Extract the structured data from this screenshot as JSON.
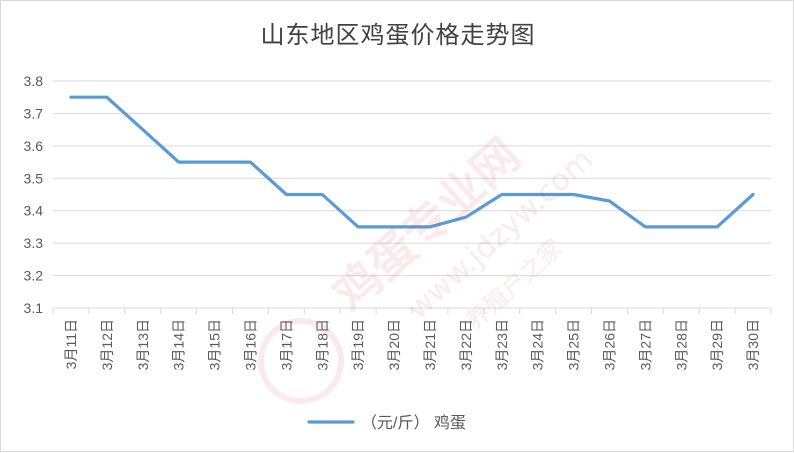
{
  "chart_data": {
    "type": "line",
    "title": "山东地区鸡蛋价格走势图",
    "xlabel": "",
    "ylabel": "",
    "categories": [
      "3月11日",
      "3月12日",
      "3月13日",
      "3月14日",
      "3月15日",
      "3月16日",
      "3月17日",
      "3月18日",
      "3月19日",
      "3月20日",
      "3月21日",
      "3月22日",
      "3月23日",
      "3月24日",
      "3月25日",
      "3月26日",
      "3月27日",
      "3月28日",
      "3月29日",
      "3月30日"
    ],
    "series": [
      {
        "name": "（元/斤）  鸡蛋",
        "values": [
          3.75,
          3.75,
          3.65,
          3.55,
          3.55,
          3.55,
          3.45,
          3.45,
          3.35,
          3.35,
          3.35,
          3.38,
          3.45,
          3.45,
          3.45,
          3.43,
          3.35,
          3.35,
          3.35,
          3.45
        ],
        "color": "#5b9bd5"
      }
    ],
    "ylim": [
      3.1,
      3.8
    ],
    "yticks": [
      "3.1",
      "3.2",
      "3.3",
      "3.4",
      "3.5",
      "3.6",
      "3.7",
      "3.8"
    ],
    "grid": true,
    "legend": "bottom"
  },
  "watermark": {
    "brand": "鸡蛋专业网",
    "url": "www.jdzyw.com",
    "slogan": "养殖户之家"
  }
}
